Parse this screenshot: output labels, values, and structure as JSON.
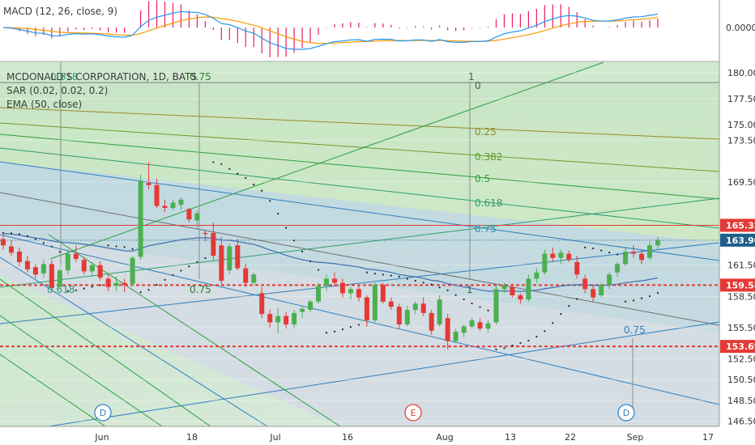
{
  "header": {
    "symbol_title": "MCDONALD'S CORPORATION, 1D, BATS",
    "macd_legend": "MACD (12, 26, close, 9)",
    "sar_legend": "SAR (0.02, 0.02, 0.2)",
    "ema_legend": "EMA (50, close)"
  },
  "colors": {
    "up": "#4caf50",
    "down": "#e53935",
    "macd_line": "#2196f3",
    "signal_line": "#ff9800",
    "hist": "#e91e63",
    "price_line": "#1f5f8a",
    "sar_dots": "#222222",
    "ema": "#3f6fb0",
    "level_red": "#e53935",
    "fan_green": "#2e9e3e",
    "fan_blue": "#2f7fbf",
    "accent_teal": "#26a69a"
  },
  "chart_data": {
    "type": "candlestick",
    "title": "MCDONALD'S CORPORATION, 1D, BATS",
    "x_tick_labels": [
      "Jun",
      "18",
      "Jul",
      "16",
      "Aug",
      "13",
      "22",
      "Sep",
      "17"
    ],
    "y_tick_labels": [
      "180.00",
      "177.50",
      "175.00",
      "173.50",
      "169.50",
      "165.33",
      "163.90",
      "161.50",
      "159.58",
      "158.50",
      "155.50",
      "153.69",
      "152.50",
      "150.50",
      "148.50",
      "146.50"
    ],
    "macd_tick_label": "0.0000",
    "ylim": [
      146,
      181
    ],
    "price_axis_labels": [
      180.0,
      177.5,
      173.5,
      169.5,
      161.5,
      158.5,
      155.5,
      152.5,
      150.5,
      148.5,
      146.5
    ],
    "highlighted_levels": [
      {
        "label": "165.33",
        "value": 165.33,
        "style": "solid-red"
      },
      {
        "label": "163.90",
        "value": 163.9,
        "style": "last-price"
      },
      {
        "label": "159.58",
        "value": 159.58,
        "style": "dashed-red"
      },
      {
        "label": "153.69",
        "value": 153.69,
        "style": "dashed-red"
      }
    ],
    "series": [
      {
        "name": "MCD",
        "candles": [
          {
            "d": "May 22",
            "o": 164.0,
            "h": 164.6,
            "l": 163.0,
            "c": 163.4
          },
          {
            "d": "May 23",
            "o": 163.3,
            "h": 163.9,
            "l": 162.4,
            "c": 162.7
          },
          {
            "d": "May 24",
            "o": 162.8,
            "h": 163.2,
            "l": 161.4,
            "c": 161.8
          },
          {
            "d": "May 25",
            "o": 161.9,
            "h": 162.4,
            "l": 160.8,
            "c": 161.1
          },
          {
            "d": "May 29",
            "o": 161.3,
            "h": 161.6,
            "l": 160.2,
            "c": 160.6
          },
          {
            "d": "May 30",
            "o": 160.7,
            "h": 162.0,
            "l": 160.3,
            "c": 161.6
          },
          {
            "d": "May 31",
            "o": 161.6,
            "h": 162.0,
            "l": 159.0,
            "c": 159.3
          },
          {
            "d": "Jun 1",
            "o": 159.4,
            "h": 161.2,
            "l": 159.2,
            "c": 161.0
          },
          {
            "d": "Jun 4",
            "o": 161.0,
            "h": 163.0,
            "l": 160.6,
            "c": 162.6
          },
          {
            "d": "Jun 5",
            "o": 162.6,
            "h": 163.4,
            "l": 161.8,
            "c": 162.1
          },
          {
            "d": "Jun 6",
            "o": 162.0,
            "h": 162.3,
            "l": 160.6,
            "c": 160.9
          },
          {
            "d": "Jun 7",
            "o": 160.9,
            "h": 161.8,
            "l": 160.4,
            "c": 161.5
          },
          {
            "d": "Jun 8",
            "o": 161.5,
            "h": 161.9,
            "l": 160.0,
            "c": 160.3
          },
          {
            "d": "Jun 11",
            "o": 160.2,
            "h": 160.6,
            "l": 159.0,
            "c": 159.4
          },
          {
            "d": "Jun 12",
            "o": 159.5,
            "h": 160.4,
            "l": 159.0,
            "c": 159.8
          },
          {
            "d": "Jun 13",
            "o": 159.8,
            "h": 160.2,
            "l": 158.9,
            "c": 159.6
          },
          {
            "d": "Jun 14",
            "o": 159.7,
            "h": 162.4,
            "l": 159.5,
            "c": 162.2
          },
          {
            "d": "Jun 15",
            "o": 162.3,
            "h": 170.2,
            "l": 162.0,
            "c": 169.6
          },
          {
            "d": "Jun 18",
            "o": 169.4,
            "h": 171.4,
            "l": 168.8,
            "c": 169.2
          },
          {
            "d": "Jun 19",
            "o": 169.2,
            "h": 169.8,
            "l": 167.0,
            "c": 167.2
          },
          {
            "d": "Jun 20",
            "o": 167.2,
            "h": 167.8,
            "l": 166.6,
            "c": 167.0
          },
          {
            "d": "Jun 21",
            "o": 167.0,
            "h": 167.8,
            "l": 166.8,
            "c": 167.5
          },
          {
            "d": "Jun 22",
            "o": 167.3,
            "h": 168.0,
            "l": 166.8,
            "c": 167.8
          },
          {
            "d": "Jun 25",
            "o": 166.9,
            "h": 167.0,
            "l": 165.6,
            "c": 165.9
          },
          {
            "d": "Jun 26",
            "o": 165.8,
            "h": 166.8,
            "l": 165.0,
            "c": 166.5
          },
          {
            "d": "Jun 27",
            "o": 164.6,
            "h": 164.9,
            "l": 163.8,
            "c": 164.5
          },
          {
            "d": "Jun 28",
            "o": 164.6,
            "h": 165.6,
            "l": 162.0,
            "c": 162.4
          },
          {
            "d": "Jun 29",
            "o": 163.4,
            "h": 164.2,
            "l": 159.6,
            "c": 160.0
          },
          {
            "d": "Jul 2",
            "o": 161.0,
            "h": 163.6,
            "l": 160.6,
            "c": 163.3
          },
          {
            "d": "Jul 3",
            "o": 163.4,
            "h": 164.0,
            "l": 161.0,
            "c": 161.2
          },
          {
            "d": "Jul 5",
            "o": 161.2,
            "h": 161.6,
            "l": 159.4,
            "c": 159.8
          },
          {
            "d": "Jul 6",
            "o": 159.8,
            "h": 160.8,
            "l": 159.6,
            "c": 160.6
          },
          {
            "d": "Jul 9",
            "o": 158.8,
            "h": 159.4,
            "l": 156.4,
            "c": 156.8
          },
          {
            "d": "Jul 10",
            "o": 156.8,
            "h": 157.2,
            "l": 155.5,
            "c": 156.0
          },
          {
            "d": "Jul 11",
            "o": 156.0,
            "h": 157.4,
            "l": 155.0,
            "c": 156.6
          },
          {
            "d": "Jul 12",
            "o": 156.6,
            "h": 157.0,
            "l": 155.4,
            "c": 155.8
          },
          {
            "d": "Jul 13",
            "o": 155.8,
            "h": 157.2,
            "l": 155.4,
            "c": 156.9
          },
          {
            "d": "Jul 16",
            "o": 157.0,
            "h": 157.6,
            "l": 156.4,
            "c": 157.3
          },
          {
            "d": "Jul 17",
            "o": 157.2,
            "h": 158.2,
            "l": 157.0,
            "c": 158.0
          },
          {
            "d": "Jul 18",
            "o": 158.0,
            "h": 159.8,
            "l": 157.8,
            "c": 159.5
          },
          {
            "d": "Jul 19",
            "o": 159.5,
            "h": 160.6,
            "l": 159.0,
            "c": 160.2
          },
          {
            "d": "Jul 20",
            "o": 160.2,
            "h": 160.8,
            "l": 159.6,
            "c": 159.8
          },
          {
            "d": "Jul 23",
            "o": 159.8,
            "h": 160.2,
            "l": 158.4,
            "c": 158.8
          },
          {
            "d": "Jul 24",
            "o": 158.8,
            "h": 159.4,
            "l": 158.2,
            "c": 159.2
          },
          {
            "d": "Jul 25",
            "o": 159.2,
            "h": 159.6,
            "l": 158.0,
            "c": 158.4
          },
          {
            "d": "Jul 26",
            "o": 158.4,
            "h": 158.6,
            "l": 155.6,
            "c": 156.2
          },
          {
            "d": "Jul 27",
            "o": 156.2,
            "h": 159.8,
            "l": 156.0,
            "c": 159.6
          },
          {
            "d": "Jul 30",
            "o": 159.6,
            "h": 159.8,
            "l": 157.8,
            "c": 158.0
          },
          {
            "d": "Jul 31",
            "o": 158.0,
            "h": 158.4,
            "l": 157.2,
            "c": 157.5
          },
          {
            "d": "Aug 1",
            "o": 157.5,
            "h": 157.8,
            "l": 155.4,
            "c": 155.8
          },
          {
            "d": "Aug 2",
            "o": 155.8,
            "h": 157.6,
            "l": 155.6,
            "c": 157.2
          },
          {
            "d": "Aug 3",
            "o": 157.2,
            "h": 158.0,
            "l": 156.8,
            "c": 157.8
          },
          {
            "d": "Aug 6",
            "o": 157.8,
            "h": 158.4,
            "l": 156.6,
            "c": 156.9
          },
          {
            "d": "Aug 7",
            "o": 156.9,
            "h": 157.2,
            "l": 154.8,
            "c": 155.2
          },
          {
            "d": "Aug 8",
            "o": 155.8,
            "h": 158.6,
            "l": 155.6,
            "c": 158.2
          },
          {
            "d": "Aug 9",
            "o": 156.4,
            "h": 156.8,
            "l": 153.4,
            "c": 154.2
          },
          {
            "d": "Aug 10",
            "o": 154.2,
            "h": 155.4,
            "l": 154.0,
            "c": 155.1
          },
          {
            "d": "Aug 13",
            "o": 155.0,
            "h": 155.8,
            "l": 154.6,
            "c": 155.6
          },
          {
            "d": "Aug 14",
            "o": 155.6,
            "h": 156.4,
            "l": 155.4,
            "c": 156.2
          },
          {
            "d": "Aug 15",
            "o": 156.0,
            "h": 156.4,
            "l": 155.2,
            "c": 155.4
          },
          {
            "d": "Aug 16",
            "o": 155.4,
            "h": 156.2,
            "l": 155.0,
            "c": 155.9
          },
          {
            "d": "Aug 17",
            "o": 156.0,
            "h": 159.6,
            "l": 155.8,
            "c": 159.2
          },
          {
            "d": "Aug 20",
            "o": 159.2,
            "h": 159.8,
            "l": 158.8,
            "c": 159.5
          },
          {
            "d": "Aug 21",
            "o": 159.4,
            "h": 159.7,
            "l": 158.4,
            "c": 158.6
          },
          {
            "d": "Aug 22",
            "o": 158.6,
            "h": 158.8,
            "l": 157.8,
            "c": 158.2
          },
          {
            "d": "Aug 23",
            "o": 158.2,
            "h": 160.6,
            "l": 158.0,
            "c": 160.2
          },
          {
            "d": "Aug 24",
            "o": 160.2,
            "h": 161.2,
            "l": 159.8,
            "c": 160.8
          },
          {
            "d": "Aug 27",
            "o": 160.8,
            "h": 163.0,
            "l": 160.6,
            "c": 162.6
          },
          {
            "d": "Aug 28",
            "o": 162.6,
            "h": 163.2,
            "l": 161.8,
            "c": 162.2
          },
          {
            "d": "Aug 29",
            "o": 162.2,
            "h": 163.0,
            "l": 161.6,
            "c": 162.7
          },
          {
            "d": "Aug 30",
            "o": 162.6,
            "h": 162.9,
            "l": 161.8,
            "c": 162.0
          },
          {
            "d": "Aug 31",
            "o": 161.8,
            "h": 162.4,
            "l": 160.2,
            "c": 160.6
          },
          {
            "d": "Sep 4",
            "o": 160.2,
            "h": 160.6,
            "l": 158.8,
            "c": 159.2
          },
          {
            "d": "Sep 5",
            "o": 159.2,
            "h": 159.6,
            "l": 158.0,
            "c": 158.4
          },
          {
            "d": "Sep 6",
            "o": 158.6,
            "h": 159.8,
            "l": 158.4,
            "c": 159.6
          },
          {
            "d": "Sep 7",
            "o": 159.6,
            "h": 160.8,
            "l": 159.2,
            "c": 160.6
          },
          {
            "d": "Sep 10",
            "o": 160.8,
            "h": 161.8,
            "l": 160.4,
            "c": 161.6
          },
          {
            "d": "Sep 11",
            "o": 161.6,
            "h": 163.2,
            "l": 161.4,
            "c": 162.8
          },
          {
            "d": "Sep 12",
            "o": 162.8,
            "h": 163.4,
            "l": 162.2,
            "c": 162.6
          },
          {
            "d": "Sep 13",
            "o": 162.6,
            "h": 163.0,
            "l": 161.6,
            "c": 162.0
          },
          {
            "d": "Sep 14",
            "o": 162.2,
            "h": 163.8,
            "l": 162.0,
            "c": 163.4
          },
          {
            "d": "Sep 17",
            "o": 163.4,
            "h": 164.2,
            "l": 163.0,
            "c": 163.9
          }
        ]
      }
    ],
    "fib_labels": [
      {
        "text": "0.75",
        "color": "#2e7d32"
      },
      {
        "text": "1",
        "color": "#555555"
      },
      {
        "text": "0",
        "color": "#555555"
      },
      {
        "text": "0.25",
        "color": "#8a8a2a"
      },
      {
        "text": "0.382",
        "color": "#5a9a2a"
      },
      {
        "text": "0.5",
        "color": "#2e9e3e"
      },
      {
        "text": "0.618",
        "color": "#2e9e6e"
      },
      {
        "text": "0.75",
        "color": "#2f8fa8"
      },
      {
        "text": "0.618",
        "color": "#2e9e6e"
      },
      {
        "text": "0.75",
        "color": "#2e7d32"
      },
      {
        "text": "1",
        "color": "#555555"
      },
      {
        "text": "0.75",
        "color": "#2f7fbf"
      },
      {
        "text": "0.618",
        "color": "#2e9e6e"
      }
    ],
    "events": [
      {
        "text": "D",
        "color": "#2f7fbf"
      },
      {
        "text": "E",
        "color": "#e53935"
      },
      {
        "text": "D",
        "color": "#2f7fbf"
      }
    ]
  }
}
